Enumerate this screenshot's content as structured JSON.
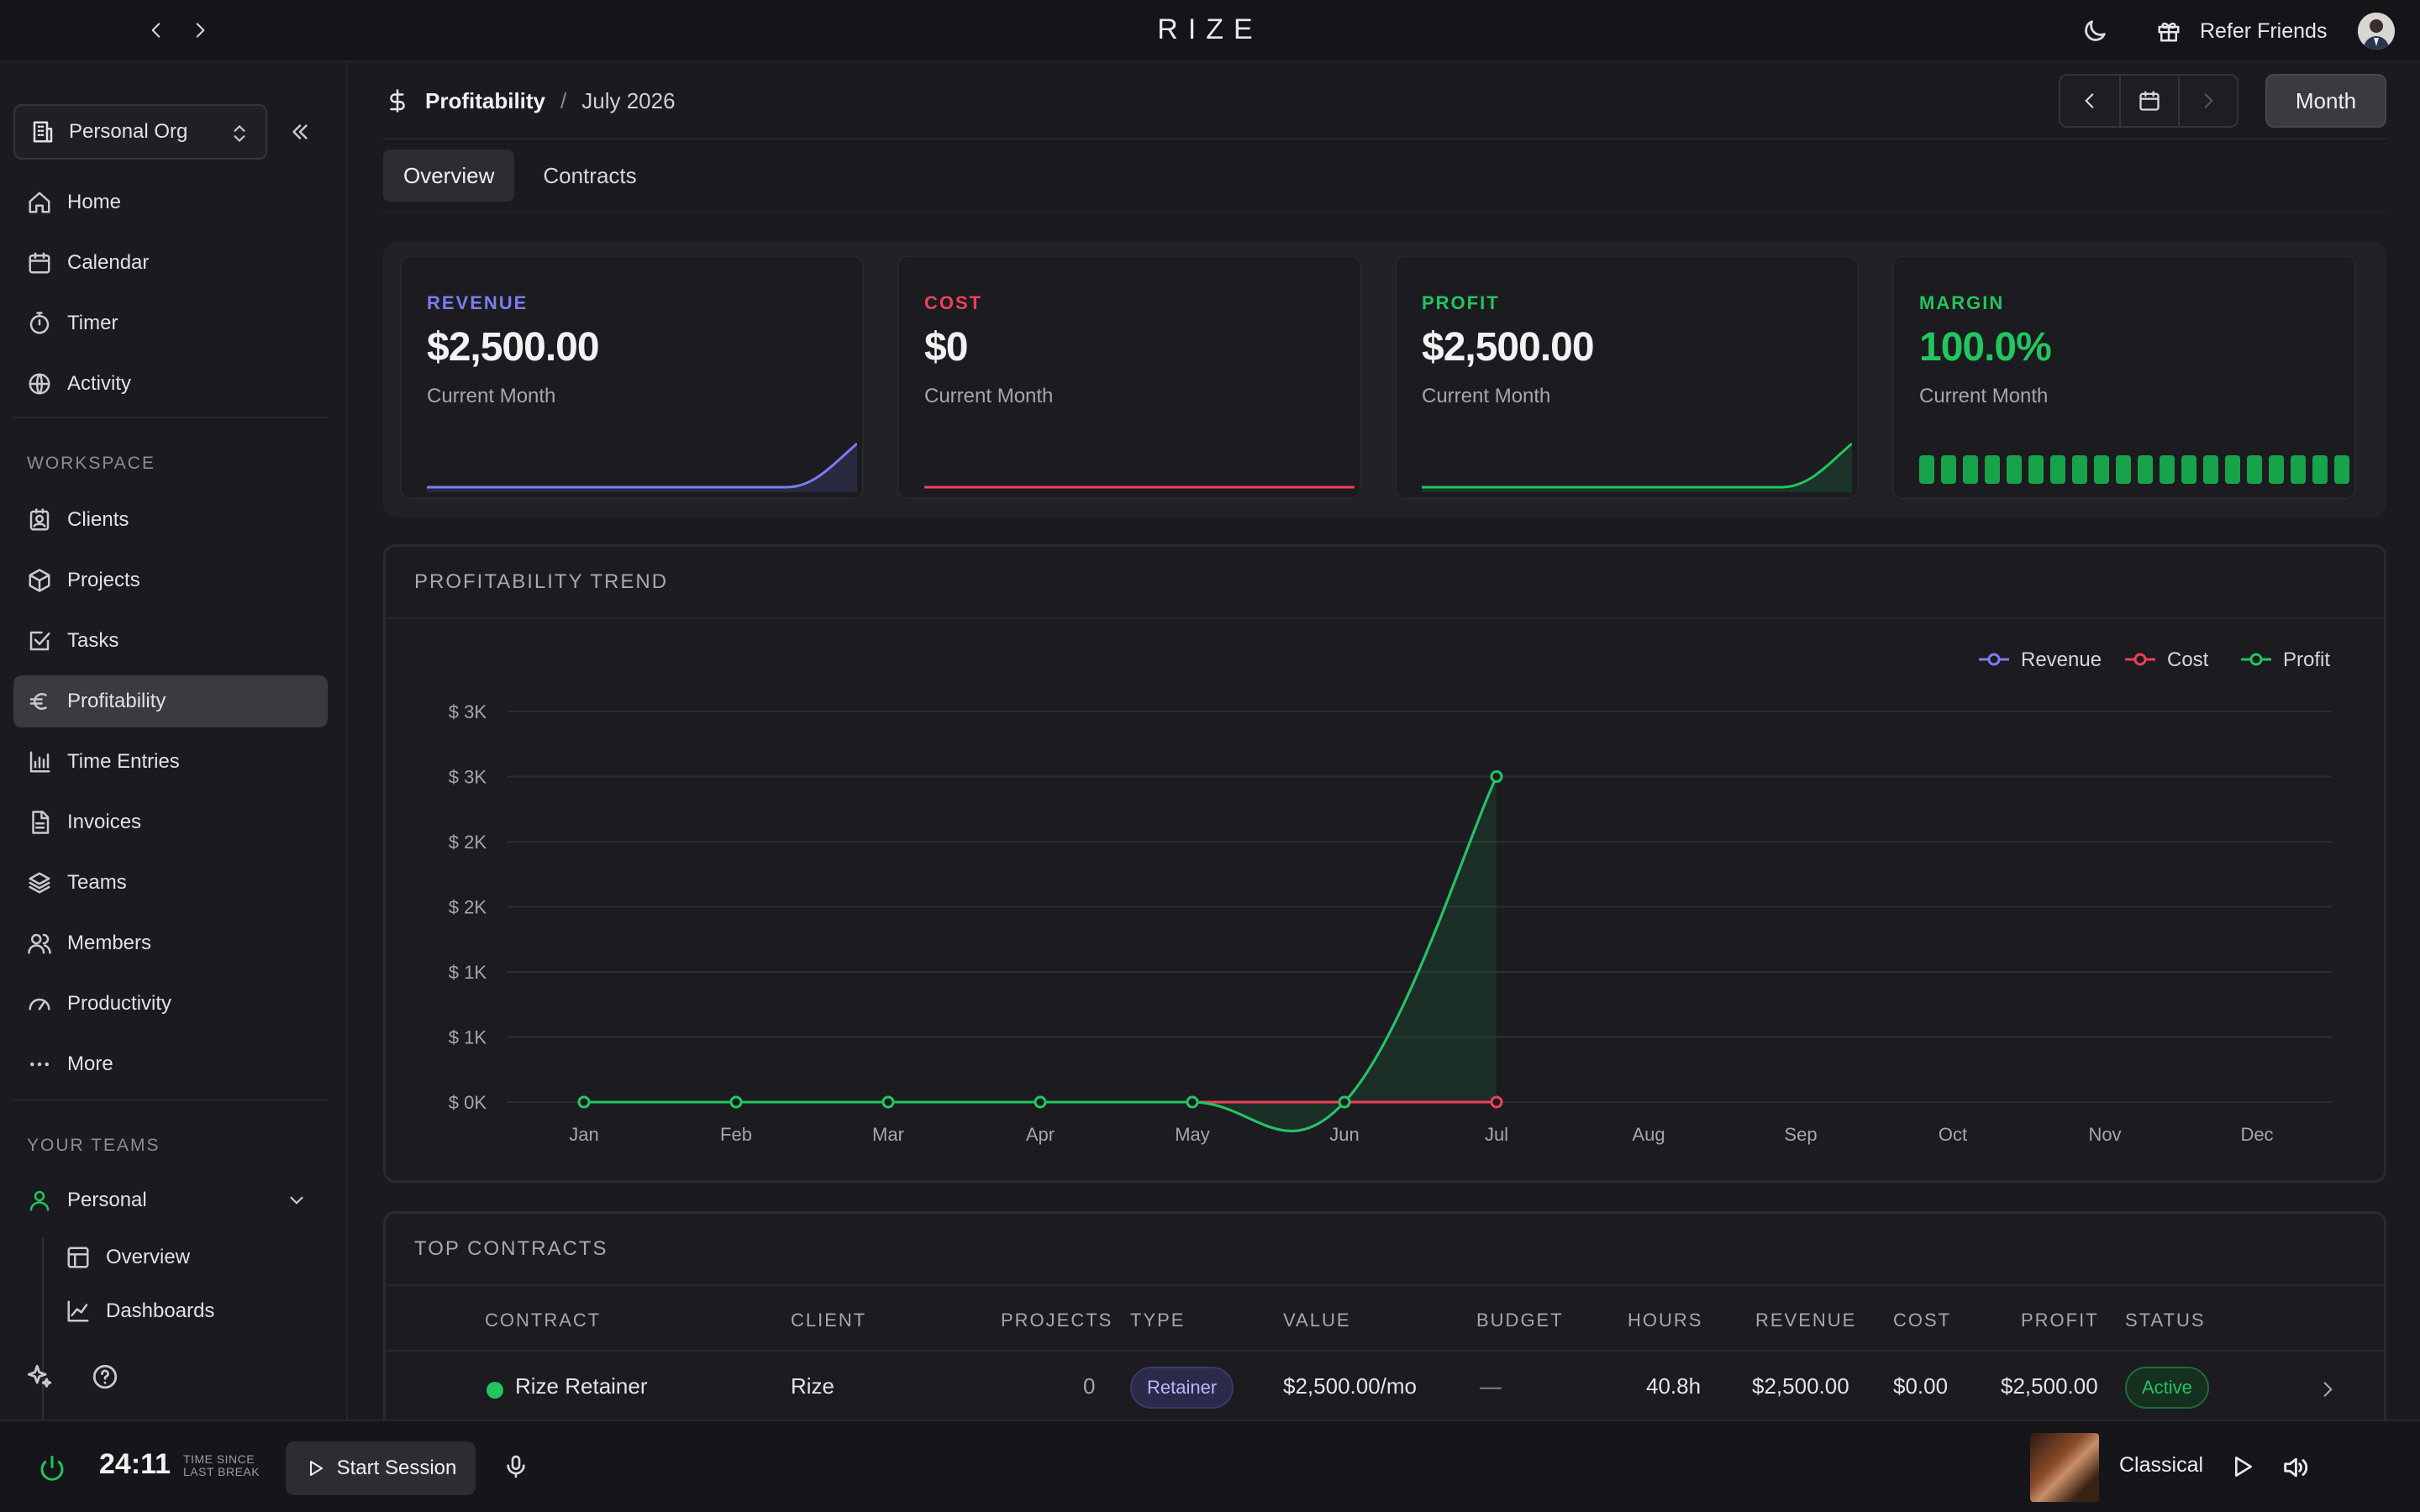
{
  "app": {
    "logo": "RIZE"
  },
  "topbar": {
    "refer_label": "Refer Friends"
  },
  "sidebar": {
    "org_name": "Personal Org",
    "main_items": [
      {
        "label": "Home",
        "icon": "home-icon"
      },
      {
        "label": "Calendar",
        "icon": "calendar-icon"
      },
      {
        "label": "Timer",
        "icon": "timer-icon"
      },
      {
        "label": "Activity",
        "icon": "globe-icon"
      }
    ],
    "workspace_heading": "WORKSPACE",
    "workspace_items": [
      {
        "label": "Clients",
        "icon": "contact-icon"
      },
      {
        "label": "Projects",
        "icon": "box-icon"
      },
      {
        "label": "Tasks",
        "icon": "checkbox-icon"
      },
      {
        "label": "Profitability",
        "icon": "euro-icon",
        "active": true
      },
      {
        "label": "Time Entries",
        "icon": "bar-chart-icon"
      },
      {
        "label": "Invoices",
        "icon": "document-icon"
      },
      {
        "label": "Teams",
        "icon": "layers-icon"
      },
      {
        "label": "Members",
        "icon": "users-icon"
      },
      {
        "label": "Productivity",
        "icon": "gauge-icon"
      },
      {
        "label": "More",
        "icon": "more-icon"
      }
    ],
    "teams_heading": "YOUR TEAMS",
    "team": {
      "label": "Personal",
      "icon": "user-icon"
    },
    "team_sub_items": [
      {
        "label": "Overview",
        "icon": "layout-icon"
      },
      {
        "label": "Dashboards",
        "icon": "line-chart-icon"
      }
    ]
  },
  "header": {
    "page_title": "Profitability",
    "separator": "/",
    "period": "July 2026",
    "range_button": "Month"
  },
  "tabs": [
    {
      "label": "Overview",
      "active": true
    },
    {
      "label": "Contracts",
      "active": false
    }
  ],
  "kpis": [
    {
      "label": "REVENUE",
      "value": "$2,500.00",
      "sub": "Current Month",
      "color": "#7c7cf0"
    },
    {
      "label": "COST",
      "value": "$0",
      "sub": "Current Month",
      "color": "#f0405a"
    },
    {
      "label": "PROFIT",
      "value": "$2,500.00",
      "sub": "Current Month",
      "color": "#22c55e"
    },
    {
      "label": "MARGIN",
      "value": "100.0%",
      "sub": "Current Month",
      "color": "#22c55e",
      "fill_fraction": 1.0
    }
  ],
  "trend": {
    "title": "PROFITABILITY TREND",
    "chart_data": {
      "type": "line",
      "categories": [
        "Jan",
        "Feb",
        "Mar",
        "Apr",
        "May",
        "Jun",
        "Jul",
        "Aug",
        "Sep",
        "Oct",
        "Nov",
        "Dec"
      ],
      "series": [
        {
          "name": "Revenue",
          "color": "#7c7cf0",
          "values": [
            0,
            0,
            0,
            0,
            0,
            0,
            2500,
            null,
            null,
            null,
            null,
            null
          ]
        },
        {
          "name": "Cost",
          "color": "#f0405a",
          "values": [
            0,
            0,
            0,
            0,
            0,
            0,
            0,
            null,
            null,
            null,
            null,
            null
          ]
        },
        {
          "name": "Profit",
          "color": "#22c55e",
          "values": [
            0,
            0,
            0,
            0,
            0,
            0,
            2500,
            null,
            null,
            null,
            null,
            null
          ]
        }
      ],
      "y_ticks": [
        0,
        500,
        1000,
        1500,
        2000,
        2500,
        3000
      ],
      "y_tick_labels": [
        "$ 0K",
        "$ 1K",
        "$ 1K",
        "$ 2K",
        "$ 2K",
        "$ 3K",
        "$ 3K"
      ],
      "ylim": [
        0,
        3000
      ],
      "grid": true,
      "legend_position": "top-right"
    }
  },
  "contracts": {
    "title": "TOP CONTRACTS",
    "columns": [
      "CONTRACT",
      "CLIENT",
      "PROJECTS",
      "TYPE",
      "VALUE",
      "BUDGET",
      "HOURS",
      "REVENUE",
      "COST",
      "PROFIT",
      "STATUS"
    ],
    "rows": [
      {
        "status_dot_color": "#22c55e",
        "contract": "Rize Retainer",
        "client": "Rize",
        "projects": "0",
        "type": "Retainer",
        "value": "$2,500.00/mo",
        "budget": "—",
        "hours": "40.8h",
        "revenue": "$2,500.00",
        "cost": "$0.00",
        "profit": "$2,500.00",
        "status": "Active"
      }
    ]
  },
  "footer": {
    "timer": "24:11",
    "timer_caption_1": "TIME SINCE",
    "timer_caption_2": "LAST BREAK",
    "start_label": "Start Session",
    "music_label": "Classical"
  }
}
